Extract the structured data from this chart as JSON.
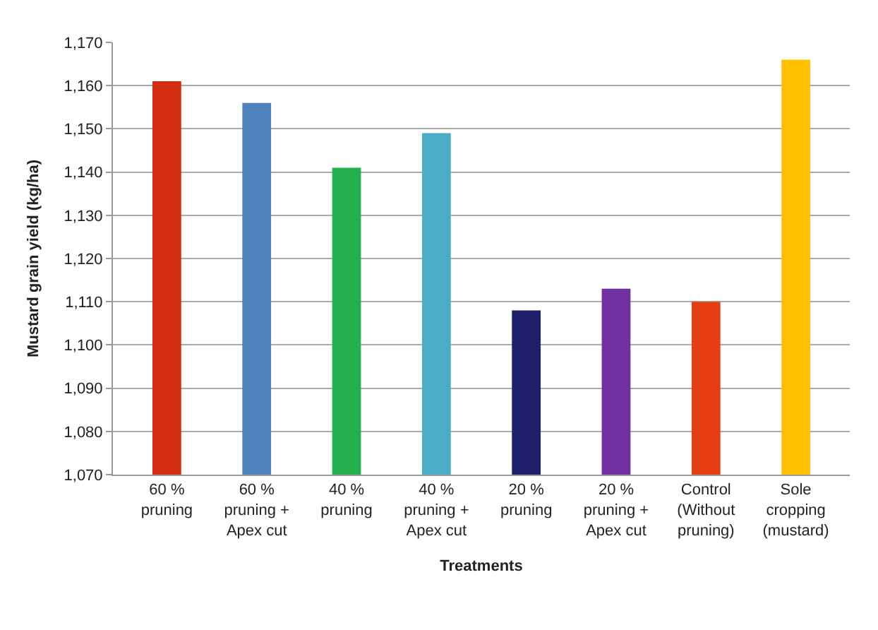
{
  "chart_data": {
    "type": "bar",
    "xlabel": "Treatments",
    "ylabel": "Mustard grain yield (kg/ha)",
    "categories": [
      "60 %\npruning",
      "60 %\npruning +\nApex cut",
      "40 %\npruning",
      "40 %\npruning +\nApex cut",
      "20 %\npruning",
      "20 %\npruning +\nApex cut",
      "Control\n(Without\npruning)",
      "Sole\ncropping\n(mustard)"
    ],
    "values": [
      1161,
      1156,
      1141,
      1149,
      1108,
      1113,
      1110,
      1166
    ],
    "colors": [
      "#d42e12",
      "#4f81bd",
      "#22b14c",
      "#4bacc6",
      "#1f1f6b",
      "#7030a0",
      "#e43e12",
      "#ffc000"
    ],
    "ylim": [
      1070,
      1170
    ],
    "yticks": [
      {
        "value": 1070,
        "label": "1,070"
      },
      {
        "value": 1080,
        "label": "1,080"
      },
      {
        "value": 1090,
        "label": "1,090"
      },
      {
        "value": 1100,
        "label": "1,100"
      },
      {
        "value": 1110,
        "label": "1,110"
      },
      {
        "value": 1120,
        "label": "1,120"
      },
      {
        "value": 1130,
        "label": "1,130"
      },
      {
        "value": 1140,
        "label": "1,140"
      },
      {
        "value": 1150,
        "label": "1,150"
      },
      {
        "value": 1160,
        "label": "1,160"
      },
      {
        "value": 1170,
        "label": "1,170"
      }
    ],
    "grid": "y",
    "legend": false
  }
}
